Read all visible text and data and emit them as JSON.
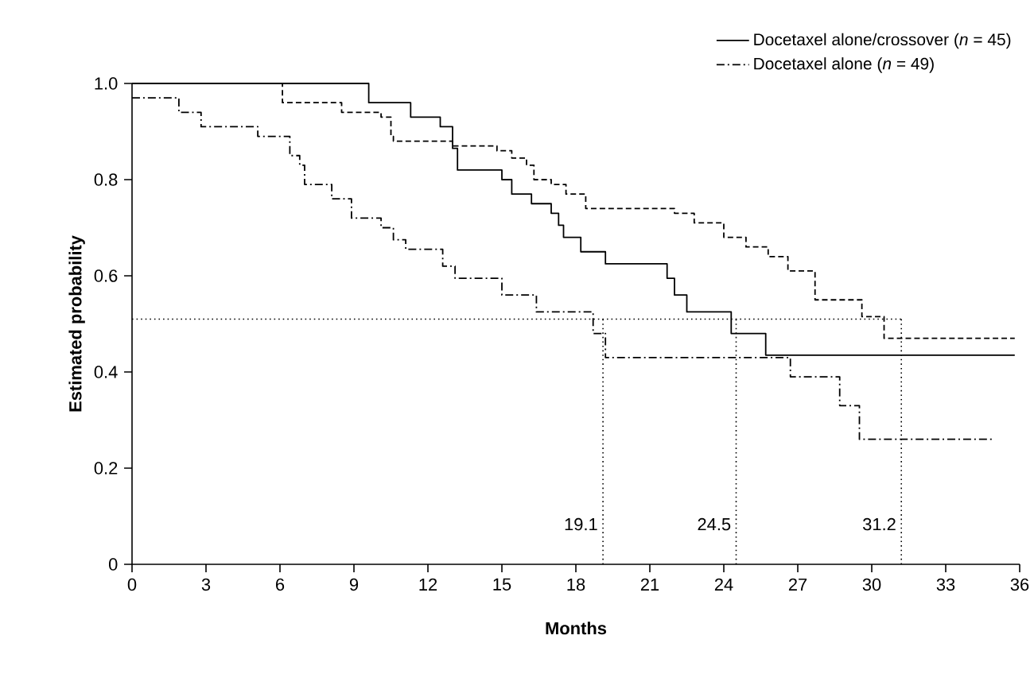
{
  "chart_data": {
    "type": "step",
    "xlabel": "Months",
    "ylabel": "Estimated probability",
    "xlim": [
      0,
      36
    ],
    "xticks": [
      0,
      3,
      6,
      9,
      12,
      15,
      18,
      21,
      24,
      27,
      30,
      33,
      36
    ],
    "ylim": [
      0,
      1
    ],
    "yticks": [
      0,
      0.2,
      0.4,
      0.6,
      0.8,
      {
        "value": 1,
        "label": "1.0"
      }
    ],
    "legend": "top right",
    "grid": false,
    "series": [
      {
        "color": "#000000",
        "line_style": "dashed",
        "x": [
          0,
          6.1,
          8.5,
          10.1,
          10.5,
          10.6,
          13.0,
          14.8,
          15.4,
          16.0,
          16.3,
          17.0,
          17.6,
          18.4,
          22.0,
          22.8,
          24.0,
          24.9,
          25.8,
          26.6,
          27.7,
          29.6,
          30.5,
          35.8
        ],
        "values": [
          1.0,
          0.96,
          0.94,
          0.93,
          0.89,
          0.88,
          0.87,
          0.86,
          0.845,
          0.83,
          0.8,
          0.79,
          0.77,
          0.74,
          0.73,
          0.71,
          0.68,
          0.66,
          0.64,
          0.61,
          0.55,
          0.515,
          0.47,
          0.47
        ]
      },
      {
        "name": "Docetaxel alone/crossover (*n* = 45)",
        "color": "#000000",
        "line_style": "solid",
        "x": [
          0,
          9.6,
          11.3,
          12.5,
          13.0,
          13.2,
          15.0,
          15.4,
          16.2,
          17.0,
          17.3,
          17.5,
          18.2,
          19.2,
          21.7,
          22.0,
          22.5,
          24.3,
          25.7,
          35.8
        ],
        "values": [
          1.0,
          0.96,
          0.93,
          0.91,
          0.865,
          0.82,
          0.8,
          0.77,
          0.75,
          0.73,
          0.705,
          0.68,
          0.65,
          0.625,
          0.595,
          0.56,
          0.525,
          0.48,
          0.435,
          0.435
        ]
      },
      {
        "name": "Docetaxel alone (*n* = 49)",
        "color": "#000000",
        "line_style": "dashdot",
        "x": [
          0,
          1.9,
          2.8,
          5.1,
          6.4,
          6.8,
          7.0,
          8.1,
          8.9,
          10.1,
          10.6,
          11.1,
          12.6,
          13.1,
          15.0,
          16.4,
          18.7,
          19.2,
          26.7,
          28.7,
          29.5,
          34.9
        ],
        "values": [
          0.97,
          0.94,
          0.91,
          0.89,
          0.85,
          0.83,
          0.79,
          0.76,
          0.72,
          0.7,
          0.675,
          0.655,
          0.62,
          0.595,
          0.56,
          0.525,
          0.48,
          0.43,
          0.39,
          0.33,
          0.26,
          0.26
        ]
      }
    ],
    "ref_lines": [
      {
        "axis": "y",
        "value": 0.51,
        "line_style": "dotted"
      },
      {
        "axis": "x",
        "value": 19.1,
        "label": "19.1",
        "line_style": "dotted"
      },
      {
        "axis": "x",
        "value": 24.5,
        "label": "24.5",
        "line_style": "dotted"
      },
      {
        "axis": "x",
        "value": 31.2,
        "label": "31.2",
        "line_style": "dotted"
      }
    ]
  }
}
